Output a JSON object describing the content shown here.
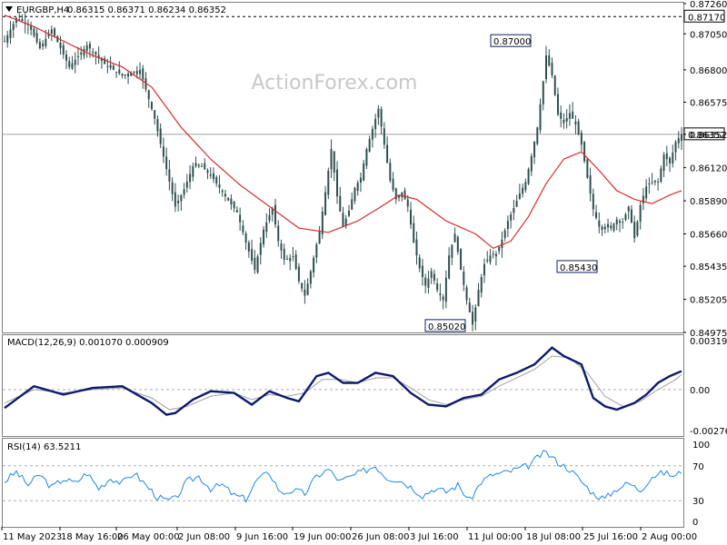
{
  "header": {
    "symbol": "EURGBP,H4",
    "ohlc": "0.86315 0.86371 0.86234 0.86352"
  },
  "watermark": "ActionForex.com",
  "colors": {
    "candle": "#2f4f4f",
    "ma": "#d32f2f",
    "macd": "#0d1b6e",
    "signal": "#a0a0a0",
    "rsi": "#1e88e5",
    "grid": "#b0b0b0",
    "label_border": "#0d1b6e"
  },
  "chart_data": [
    {
      "type": "candlestick",
      "name": "price",
      "x_labels": [
        "11 May 2023",
        "18 May 16:00",
        "26 May 00:00",
        "2 Jun 08:00",
        "9 Jun 16:00",
        "19 Jun 00:00",
        "26 Jun 08:00",
        "3 Jul 16:00",
        "11 Jul 00:00",
        "18 Jul 08:00",
        "25 Jul 16:00",
        "2 Aug 00:00"
      ],
      "y_ticks": [
        "0.87260",
        "0.87050",
        "0.86800",
        "0.86575",
        "0.86352",
        "0.86120",
        "0.85890",
        "0.85660",
        "0.85435",
        "0.85205",
        "0.84975"
      ],
      "ylim": [
        0.84975,
        0.8726
      ],
      "horizontal_levels": [
        {
          "label": "0.87170",
          "value": 0.8717,
          "style": "dashed"
        },
        {
          "label": "0.86352",
          "value": 0.86352,
          "style": "solid"
        }
      ],
      "annotations": [
        {
          "label": "0.87000",
          "value": 0.87
        },
        {
          "label": "0.85430",
          "value": 0.8543
        },
        {
          "label": "0.85020",
          "value": 0.8502
        }
      ],
      "price_path": [
        [
          0,
          0.87
        ],
        [
          4,
          0.8716
        ],
        [
          8,
          0.8712
        ],
        [
          12,
          0.8695
        ],
        [
          16,
          0.8708
        ],
        [
          22,
          0.8682
        ],
        [
          28,
          0.8697
        ],
        [
          34,
          0.8684
        ],
        [
          40,
          0.8676
        ],
        [
          46,
          0.868
        ],
        [
          51,
          0.8646
        ],
        [
          55,
          0.8611
        ],
        [
          58,
          0.8585
        ],
        [
          61,
          0.8597
        ],
        [
          64,
          0.8613
        ],
        [
          67,
          0.8613
        ],
        [
          71,
          0.8604
        ],
        [
          75,
          0.8592
        ],
        [
          79,
          0.8581
        ],
        [
          82,
          0.856
        ],
        [
          85,
          0.8541
        ],
        [
          88,
          0.8569
        ],
        [
          91,
          0.8584
        ],
        [
          93,
          0.8561
        ],
        [
          95,
          0.8548
        ],
        [
          98,
          0.855
        ],
        [
          100,
          0.8533
        ],
        [
          102,
          0.8523
        ],
        [
          104,
          0.854
        ],
        [
          107,
          0.8568
        ],
        [
          109,
          0.8595
        ],
        [
          111,
          0.8625
        ],
        [
          113,
          0.8592
        ],
        [
          115,
          0.8571
        ],
        [
          117,
          0.8582
        ],
        [
          119,
          0.8598
        ],
        [
          121,
          0.8605
        ],
        [
          123,
          0.8625
        ],
        [
          125,
          0.8639
        ],
        [
          127,
          0.8653
        ],
        [
          129,
          0.8628
        ],
        [
          131,
          0.8603
        ],
        [
          133,
          0.859
        ],
        [
          135,
          0.8595
        ],
        [
          137,
          0.8585
        ],
        [
          139,
          0.856
        ],
        [
          141,
          0.8542
        ],
        [
          143,
          0.853
        ],
        [
          145,
          0.854
        ],
        [
          147,
          0.8527
        ],
        [
          149,
          0.852
        ],
        [
          151,
          0.8551
        ],
        [
          153,
          0.8566
        ],
        [
          155,
          0.8541
        ],
        [
          157,
          0.852
        ],
        [
          159,
          0.8503
        ],
        [
          161,
          0.8527
        ],
        [
          163,
          0.8545
        ],
        [
          165,
          0.8551
        ],
        [
          167,
          0.8552
        ],
        [
          169,
          0.8562
        ],
        [
          171,
          0.8575
        ],
        [
          173,
          0.8584
        ],
        [
          175,
          0.8594
        ],
        [
          177,
          0.8602
        ],
        [
          179,
          0.862
        ],
        [
          181,
          0.864
        ],
        [
          183,
          0.8672
        ],
        [
          184,
          0.869
        ],
        [
          186,
          0.8676
        ],
        [
          188,
          0.8649
        ],
        [
          190,
          0.8643
        ],
        [
          192,
          0.865
        ],
        [
          194,
          0.8642
        ],
        [
          196,
          0.8628
        ],
        [
          198,
          0.8605
        ],
        [
          200,
          0.8583
        ],
        [
          202,
          0.8571
        ],
        [
          204,
          0.8571
        ],
        [
          206,
          0.857
        ],
        [
          208,
          0.8576
        ],
        [
          210,
          0.8574
        ],
        [
          212,
          0.8585
        ],
        [
          214,
          0.8563
        ],
        [
          216,
          0.8586
        ],
        [
          218,
          0.8599
        ],
        [
          220,
          0.8602
        ],
        [
          222,
          0.8602
        ],
        [
          224,
          0.8621
        ],
        [
          226,
          0.8615
        ],
        [
          228,
          0.863
        ],
        [
          230,
          0.8635
        ]
      ],
      "ma_path": [
        [
          0,
          0.8718
        ],
        [
          10,
          0.871
        ],
        [
          20,
          0.87
        ],
        [
          30,
          0.869
        ],
        [
          40,
          0.8682
        ],
        [
          50,
          0.8668
        ],
        [
          60,
          0.864
        ],
        [
          70,
          0.8618
        ],
        [
          80,
          0.86
        ],
        [
          90,
          0.8585
        ],
        [
          100,
          0.857
        ],
        [
          110,
          0.8567
        ],
        [
          120,
          0.8575
        ],
        [
          128,
          0.8585
        ],
        [
          134,
          0.8593
        ],
        [
          140,
          0.859
        ],
        [
          150,
          0.8575
        ],
        [
          160,
          0.8566
        ],
        [
          166,
          0.8556
        ],
        [
          172,
          0.8561
        ],
        [
          178,
          0.8578
        ],
        [
          184,
          0.8601
        ],
        [
          190,
          0.8618
        ],
        [
          196,
          0.8623
        ],
        [
          202,
          0.861
        ],
        [
          208,
          0.8596
        ],
        [
          214,
          0.859
        ],
        [
          220,
          0.8587
        ],
        [
          226,
          0.8593
        ],
        [
          230,
          0.8596
        ]
      ]
    },
    {
      "type": "line",
      "name": "macd",
      "label": "MACD(12,26,9) 0.001070 0.000909",
      "y_ticks": [
        "0.00319",
        "0.00",
        "-0.002769"
      ],
      "ylim": [
        -0.002769,
        0.00319
      ],
      "series": [
        {
          "values": [
            [
              0,
              -0.0011
            ],
            [
              10,
              0.0002
            ],
            [
              20,
              -0.0003
            ],
            [
              30,
              0.0001
            ],
            [
              40,
              0.0002
            ],
            [
              50,
              -0.0008
            ],
            [
              55,
              -0.0015
            ],
            [
              58,
              -0.0014
            ],
            [
              64,
              -0.0006
            ],
            [
              70,
              -0.0001
            ],
            [
              78,
              -0.0002
            ],
            [
              84,
              -0.0009
            ],
            [
              90,
              -0.0001
            ],
            [
              96,
              -0.0005
            ],
            [
              100,
              -0.0007
            ],
            [
              106,
              0.0008
            ],
            [
              110,
              0.001
            ],
            [
              115,
              0.0004
            ],
            [
              120,
              0.0004
            ],
            [
              126,
              0.001
            ],
            [
              132,
              0.0008
            ],
            [
              138,
              -0.0002
            ],
            [
              144,
              -0.0009
            ],
            [
              150,
              -0.001
            ],
            [
              156,
              -0.0005
            ],
            [
              162,
              -0.0003
            ],
            [
              168,
              0.0006
            ],
            [
              174,
              0.001
            ],
            [
              180,
              0.0015
            ],
            [
              186,
              0.0025
            ],
            [
              190,
              0.002
            ],
            [
              196,
              0.0015
            ],
            [
              200,
              -0.0005
            ],
            [
              204,
              -0.001
            ],
            [
              208,
              -0.0012
            ],
            [
              214,
              -0.0008
            ],
            [
              218,
              -0.0003
            ],
            [
              222,
              0.0004
            ],
            [
              226,
              0.0008
            ],
            [
              230,
              0.0011
            ]
          ]
        },
        {
          "values": [
            [
              0,
              -0.0008
            ],
            [
              10,
              0.0
            ],
            [
              20,
              -0.0002
            ],
            [
              30,
              0.0
            ],
            [
              40,
              0.0001
            ],
            [
              50,
              -0.0005
            ],
            [
              56,
              -0.0012
            ],
            [
              62,
              -0.001
            ],
            [
              70,
              -0.0004
            ],
            [
              78,
              -0.0002
            ],
            [
              84,
              -0.0006
            ],
            [
              90,
              -0.0003
            ],
            [
              96,
              -0.0004
            ],
            [
              102,
              -0.0002
            ],
            [
              108,
              0.0006
            ],
            [
              114,
              0.0006
            ],
            [
              120,
              0.0004
            ],
            [
              126,
              0.0007
            ],
            [
              132,
              0.0007
            ],
            [
              138,
              0.0001
            ],
            [
              144,
              -0.0006
            ],
            [
              150,
              -0.0009
            ],
            [
              156,
              -0.0006
            ],
            [
              162,
              -0.0004
            ],
            [
              168,
              0.0002
            ],
            [
              174,
              0.0007
            ],
            [
              180,
              0.0012
            ],
            [
              186,
              0.002
            ],
            [
              192,
              0.0019
            ],
            [
              198,
              0.001
            ],
            [
              204,
              -0.0004
            ],
            [
              210,
              -0.001
            ],
            [
              216,
              -0.0007
            ],
            [
              222,
              0.0
            ],
            [
              228,
              0.0006
            ],
            [
              230,
              0.0009
            ]
          ]
        }
      ]
    },
    {
      "type": "line",
      "name": "rsi",
      "label": "RSI(14) 63.5211",
      "y_ticks": [
        "100",
        "70",
        "30",
        "0"
      ],
      "ylim": [
        0,
        100
      ],
      "levels": [
        70,
        30
      ],
      "series": [
        {
          "values": [
            [
              0,
              52
            ],
            [
              4,
              63
            ],
            [
              8,
              48
            ],
            [
              12,
              60
            ],
            [
              16,
              45
            ],
            [
              20,
              55
            ],
            [
              24,
              50
            ],
            [
              28,
              62
            ],
            [
              32,
              44
            ],
            [
              36,
              56
            ],
            [
              40,
              50
            ],
            [
              44,
              62
            ],
            [
              48,
              48
            ],
            [
              52,
              34
            ],
            [
              55,
              30
            ],
            [
              58,
              32
            ],
            [
              62,
              52
            ],
            [
              66,
              58
            ],
            [
              70,
              44
            ],
            [
              74,
              48
            ],
            [
              78,
              36
            ],
            [
              82,
              32
            ],
            [
              86,
              55
            ],
            [
              90,
              62
            ],
            [
              94,
              38
            ],
            [
              98,
              42
            ],
            [
              102,
              38
            ],
            [
              106,
              58
            ],
            [
              110,
              66
            ],
            [
              114,
              52
            ],
            [
              118,
              58
            ],
            [
              122,
              64
            ],
            [
              126,
              70
            ],
            [
              130,
              56
            ],
            [
              134,
              54
            ],
            [
              138,
              46
            ],
            [
              142,
              36
            ],
            [
              146,
              44
            ],
            [
              150,
              40
            ],
            [
              154,
              48
            ],
            [
              158,
              30
            ],
            [
              162,
              52
            ],
            [
              166,
              60
            ],
            [
              170,
              62
            ],
            [
              174,
              66
            ],
            [
              178,
              70
            ],
            [
              182,
              82
            ],
            [
              184,
              85
            ],
            [
              188,
              74
            ],
            [
              192,
              66
            ],
            [
              196,
              52
            ],
            [
              200,
              38
            ],
            [
              204,
              32
            ],
            [
              208,
              44
            ],
            [
              212,
              50
            ],
            [
              216,
              42
            ],
            [
              220,
              58
            ],
            [
              224,
              62
            ],
            [
              228,
              58
            ],
            [
              230,
              64
            ]
          ]
        }
      ]
    }
  ]
}
